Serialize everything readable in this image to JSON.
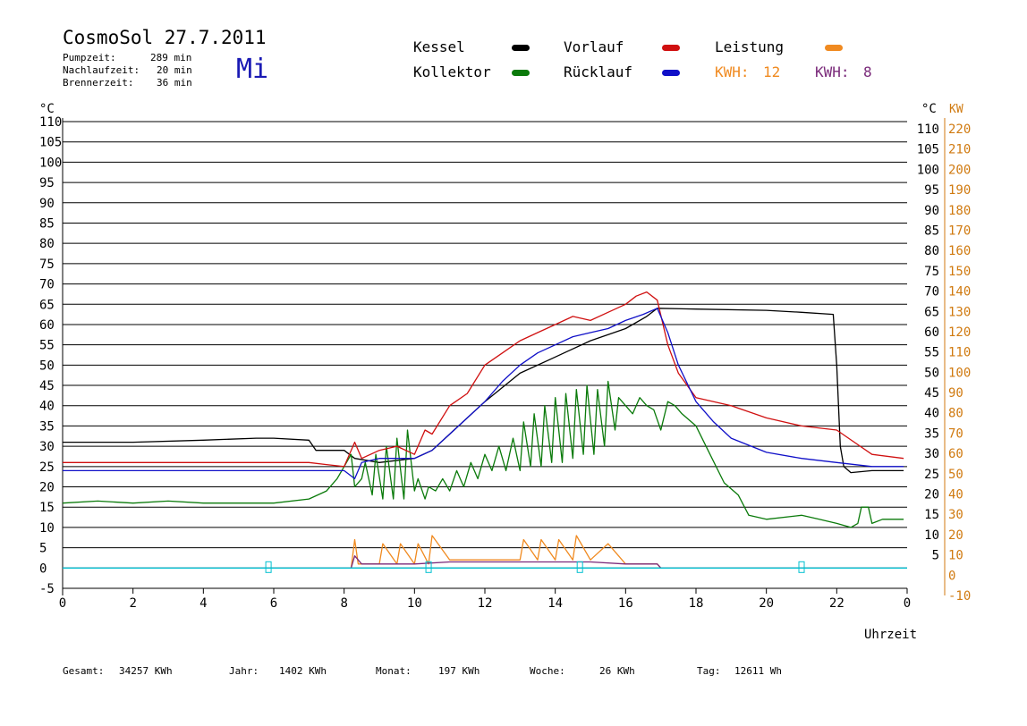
{
  "header": {
    "title": "CosmoSol 27.7.2011",
    "weekday": "Mi",
    "stats": [
      {
        "label": "Pumpzeit:",
        "value": "289 min"
      },
      {
        "label": "Nachlaufzeit:",
        "value": "20 min"
      },
      {
        "label": "Brennerzeit:",
        "value": "36 min"
      }
    ]
  },
  "legend": {
    "kessel": "Kessel",
    "kollektor": "Kollektor",
    "vorlauf": "Vorlauf",
    "ruecklauf": "Rücklauf",
    "leistung": "Leistung",
    "kwh1_label": "KWH:",
    "kwh1_value": "12",
    "kwh2_label": "KWH:",
    "kwh2_value": "8"
  },
  "colors": {
    "kessel": "#000000",
    "kollektor": "#0a7a0a",
    "vorlauf": "#d01010",
    "ruecklauf": "#1010c8",
    "leistung": "#f08a20",
    "kwh2": "#7a2a7a",
    "right_kw_axis": "#d07a10",
    "pump_line": "#00c0d0"
  },
  "footer": [
    {
      "label": "Gesamt:",
      "value": "34257 KWh"
    },
    {
      "label": "Jahr:",
      "value": "1402 KWh"
    },
    {
      "label": "Monat:",
      "value": "197 KWh"
    },
    {
      "label": "Woche:",
      "value": "26 KWh"
    },
    {
      "label": "Tag:",
      "value": "12611 Wh"
    }
  ],
  "chart_data": {
    "type": "line",
    "xlabel": "Uhrzeit",
    "ylabel_left": "°C",
    "ylabel_right_temp": "°C",
    "ylabel_right_power": "KW",
    "xlim": [
      0,
      24
    ],
    "ylim": [
      -5,
      110
    ],
    "ylim_right_power": [
      -10,
      220
    ],
    "x_ticks": [
      "0",
      "2",
      "4",
      "6",
      "8",
      "10",
      "12",
      "14",
      "16",
      "18",
      "20",
      "22",
      "0"
    ],
    "y_ticks": [
      110,
      105,
      100,
      95,
      90,
      85,
      80,
      75,
      70,
      65,
      60,
      55,
      50,
      45,
      40,
      35,
      30,
      25,
      20,
      15,
      10,
      5,
      0,
      -5
    ],
    "y_ticks_right_temp": [
      110,
      105,
      100,
      95,
      90,
      85,
      80,
      75,
      70,
      65,
      60,
      55,
      50,
      45,
      40,
      35,
      30,
      25,
      20,
      15,
      10,
      5
    ],
    "y_ticks_right_power": [
      220,
      210,
      200,
      190,
      180,
      170,
      160,
      150,
      140,
      130,
      120,
      110,
      100,
      90,
      80,
      70,
      60,
      50,
      40,
      30,
      20,
      10,
      0,
      -10
    ],
    "grid": true,
    "legend_position": "top",
    "series": [
      {
        "name": "Kessel",
        "color": "#000000",
        "x": [
          0,
          2,
          4,
          5.5,
          6,
          7,
          7.2,
          8,
          8.3,
          9,
          10,
          10.5,
          11,
          12,
          13,
          14,
          15,
          16,
          16.6,
          16.9,
          18,
          20,
          21,
          21.9,
          22,
          22.1,
          22.2,
          22.4,
          23,
          23.9
        ],
        "y": [
          31,
          31,
          31.5,
          32,
          32,
          31.5,
          29,
          29,
          27,
          26,
          27,
          29,
          33,
          41,
          48,
          52,
          56,
          59,
          62,
          64,
          63.8,
          63.5,
          63,
          62.5,
          50,
          30,
          25,
          23.5,
          24,
          24
        ]
      },
      {
        "name": "Kollektor",
        "color": "#0a7a0a",
        "x": [
          0,
          1,
          2,
          3,
          4,
          5,
          6,
          7,
          7.5,
          7.8,
          8,
          8.2,
          8.3,
          8.5,
          8.6,
          8.8,
          8.9,
          9.1,
          9.2,
          9.4,
          9.5,
          9.7,
          9.8,
          10,
          10.1,
          10.3,
          10.4,
          10.6,
          10.8,
          11,
          11.2,
          11.4,
          11.6,
          11.8,
          12,
          12.2,
          12.4,
          12.6,
          12.8,
          13,
          13.1,
          13.3,
          13.4,
          13.6,
          13.7,
          13.9,
          14,
          14.2,
          14.3,
          14.5,
          14.6,
          14.8,
          14.9,
          15.1,
          15.2,
          15.4,
          15.5,
          15.7,
          15.8,
          16,
          16.2,
          16.4,
          16.6,
          16.8,
          17,
          17.2,
          17.4,
          17.6,
          18,
          18.4,
          18.8,
          19.2,
          19.5,
          20,
          21,
          21.5,
          22,
          22.4,
          22.6,
          22.7,
          22.9,
          23,
          23.3,
          23.9
        ],
        "y": [
          16,
          16.5,
          16,
          16.5,
          16,
          16,
          16,
          17,
          19,
          22,
          25,
          28,
          20,
          22,
          26,
          18,
          28,
          17,
          30,
          17,
          32,
          17,
          34,
          19,
          22,
          17,
          20,
          19,
          22,
          19,
          24,
          20,
          26,
          22,
          28,
          24,
          30,
          24,
          32,
          24,
          36,
          25,
          38,
          25,
          40,
          26,
          42,
          26,
          43,
          27,
          44,
          28,
          45,
          28,
          44,
          30,
          46,
          34,
          42,
          40,
          38,
          42,
          40,
          39,
          34,
          41,
          40,
          38,
          35,
          28,
          21,
          18,
          13,
          12,
          13,
          12,
          11,
          10,
          11,
          15,
          15,
          11,
          12,
          12
        ]
      },
      {
        "name": "Vorlauf",
        "color": "#d01010",
        "x": [
          0,
          2,
          4,
          6,
          7,
          7.5,
          8,
          8.3,
          8.5,
          9,
          9.5,
          10,
          10.3,
          10.5,
          11,
          11.5,
          12,
          12.5,
          13,
          13.5,
          14,
          14.5,
          15,
          15.5,
          16,
          16.3,
          16.6,
          16.9,
          17.2,
          17.5,
          18,
          19,
          20,
          21,
          22,
          22.5,
          23,
          23.9
        ],
        "y": [
          26,
          26,
          26,
          26,
          26,
          25.5,
          25,
          31,
          27,
          29,
          30,
          28,
          34,
          33,
          40,
          43,
          50,
          53,
          56,
          58,
          60,
          62,
          61,
          63,
          65,
          67,
          68,
          66,
          55,
          48,
          42,
          40,
          37,
          35,
          34,
          31,
          28,
          27
        ]
      },
      {
        "name": "Rücklauf",
        "color": "#1010c8",
        "x": [
          0,
          2,
          4,
          6,
          7,
          8,
          8.3,
          8.5,
          9,
          9.5,
          10,
          10.5,
          11,
          11.5,
          12,
          12.5,
          13,
          13.5,
          14,
          14.5,
          15,
          15.5,
          16,
          16.5,
          16.9,
          17.2,
          17.5,
          18,
          18.5,
          19,
          20,
          21,
          22,
          23,
          23.9
        ],
        "y": [
          24,
          24,
          24,
          24,
          24,
          24,
          22,
          26,
          27,
          27,
          27,
          29,
          33,
          37,
          41,
          46,
          50,
          53,
          55,
          57,
          58,
          59,
          61,
          62.5,
          64,
          58,
          50,
          41,
          36,
          32,
          28.5,
          27,
          26,
          25,
          25
        ]
      },
      {
        "name": "Leistung",
        "color": "#f08a20",
        "x": [
          0,
          8.2,
          8.3,
          8.4,
          9,
          9.1,
          9.5,
          9.6,
          10,
          10.1,
          10.4,
          10.5,
          11,
          11.5,
          12,
          12.5,
          13,
          13.1,
          13.5,
          13.6,
          14,
          14.1,
          14.5,
          14.6,
          15,
          15.5,
          16,
          16.5,
          16.9,
          17,
          24
        ],
        "y": [
          0,
          0,
          7,
          1,
          1,
          6,
          1,
          6,
          1,
          6,
          1,
          8,
          2,
          2,
          2,
          2,
          2,
          7,
          2,
          7,
          2,
          7,
          2,
          8,
          2,
          6,
          1,
          1,
          1,
          0,
          0
        ]
      },
      {
        "name": "KWH: 8",
        "color": "#7a2a7a",
        "x": [
          0,
          8.2,
          8.3,
          8.5,
          9,
          10,
          11,
          12,
          13,
          14,
          15,
          16,
          16.9,
          17,
          24
        ],
        "y": [
          0,
          0,
          3,
          1,
          1,
          1,
          1.5,
          1.5,
          1.5,
          1.5,
          1.5,
          1,
          1,
          0,
          0
        ]
      },
      {
        "name": "Pumpe",
        "color": "#00c0d0",
        "x": [
          0,
          24
        ],
        "y": [
          0,
          0
        ]
      }
    ]
  }
}
